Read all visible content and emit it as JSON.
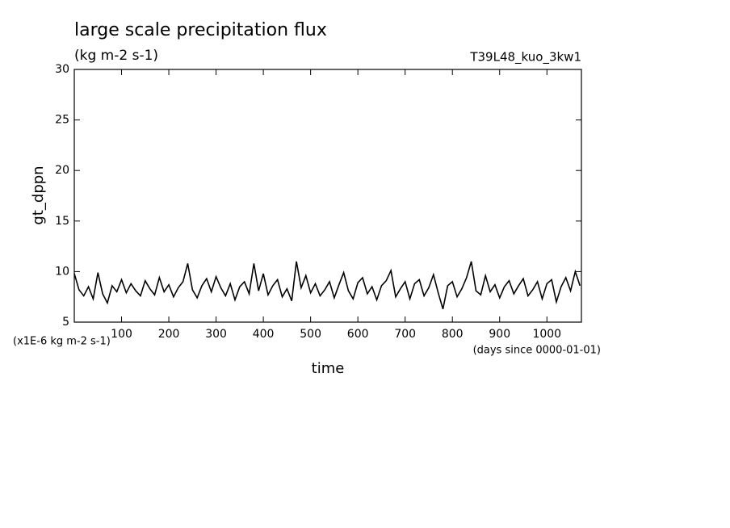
{
  "chart_data": {
    "type": "line",
    "title": "large scale precipitation flux",
    "subtitle": "(kg m-2 s-1)",
    "annotation": "T39L48_kuo_3kw1",
    "y_label": "gt_dppn",
    "x_label": "time",
    "y_unit_label": "(x1E-6 kg m-2 s-1)",
    "x_unit_label": "(days since 0000-01-01)",
    "color": "#000000",
    "x": [
      0,
      10,
      20,
      30,
      40,
      50,
      60,
      70,
      80,
      90,
      100,
      110,
      120,
      130,
      140,
      150,
      160,
      170,
      180,
      190,
      200,
      210,
      220,
      230,
      240,
      250,
      260,
      270,
      280,
      290,
      300,
      310,
      320,
      330,
      340,
      350,
      360,
      370,
      380,
      390,
      400,
      410,
      420,
      430,
      440,
      450,
      460,
      470,
      480,
      490,
      500,
      510,
      520,
      530,
      540,
      550,
      560,
      570,
      580,
      590,
      600,
      610,
      620,
      630,
      640,
      650,
      660,
      670,
      680,
      690,
      700,
      710,
      720,
      730,
      740,
      750,
      760,
      770,
      780,
      790,
      800,
      810,
      820,
      830,
      840,
      850,
      860,
      870,
      880,
      890,
      900,
      910,
      920,
      930,
      940,
      950,
      960,
      970,
      980,
      990,
      1000,
      1010,
      1020,
      1030,
      1040,
      1050,
      1060,
      1070
    ],
    "values": [
      9.8,
      8.2,
      7.6,
      8.5,
      7.3,
      9.9,
      7.8,
      6.9,
      8.6,
      8.0,
      9.2,
      7.9,
      8.8,
      8.1,
      7.6,
      9.1,
      8.3,
      7.7,
      9.4,
      8.0,
      8.7,
      7.5,
      8.4,
      9.0,
      10.8,
      8.2,
      7.4,
      8.6,
      9.3,
      8.0,
      9.5,
      8.4,
      7.6,
      8.8,
      7.2,
      8.5,
      9.0,
      7.8,
      10.8,
      8.1,
      9.8,
      7.7,
      8.6,
      9.2,
      7.5,
      8.3,
      7.1,
      11.0,
      8.4,
      9.6,
      7.9,
      8.8,
      7.6,
      8.2,
      9.0,
      7.4,
      8.7,
      9.9,
      8.1,
      7.3,
      8.9,
      9.4,
      7.8,
      8.5,
      7.2,
      8.6,
      9.1,
      10.1,
      7.5,
      8.3,
      9.0,
      7.3,
      8.8,
      9.2,
      7.6,
      8.4,
      9.7,
      7.9,
      6.3,
      8.6,
      9.0,
      7.5,
      8.3,
      9.4,
      11.0,
      8.1,
      7.7,
      9.6,
      8.0,
      8.7,
      7.4,
      8.5,
      9.1,
      7.8,
      8.6,
      9.3,
      7.6,
      8.2,
      9.0,
      7.3,
      8.8,
      9.2,
      7.0,
      8.5,
      9.4,
      8.1,
      10.0,
      8.6
    ],
    "xlim": [
      0,
      1073
    ],
    "xticks": [
      100,
      200,
      300,
      400,
      500,
      600,
      700,
      800,
      900,
      1000
    ],
    "ylim": [
      5,
      30
    ],
    "yticks": [
      5,
      10,
      15,
      20,
      25,
      30
    ]
  }
}
